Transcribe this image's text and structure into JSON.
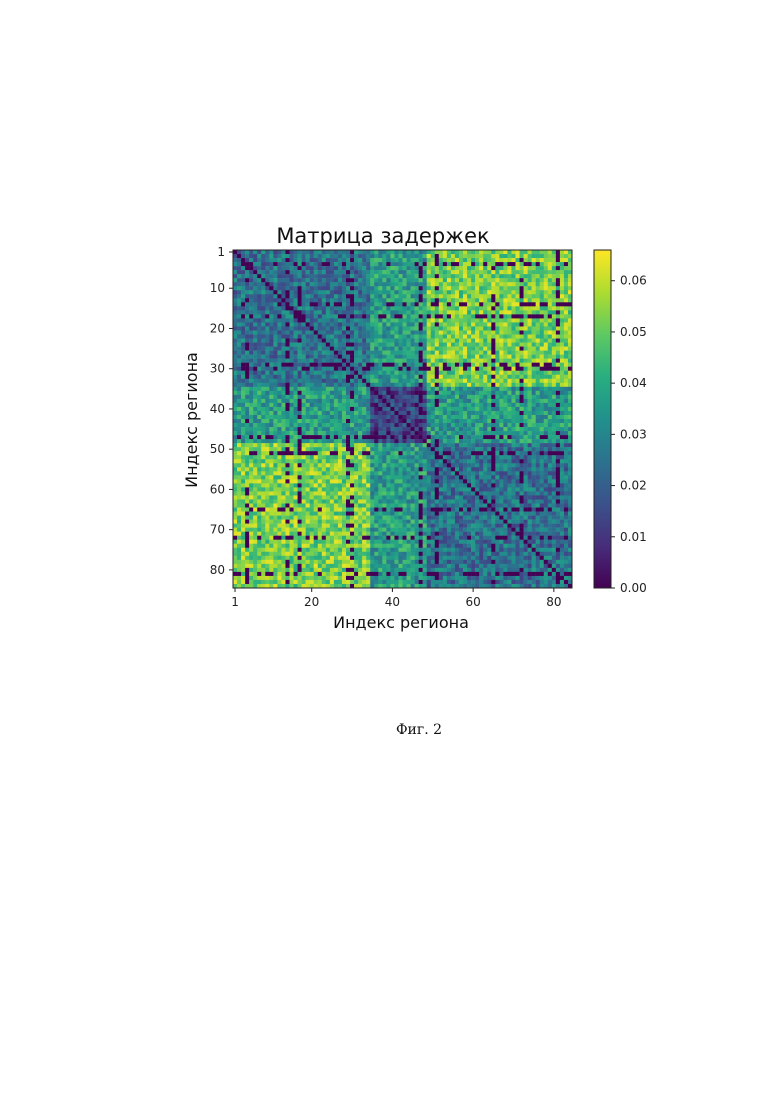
{
  "chart_data": {
    "type": "heatmap",
    "title": "Матрица задержек",
    "xlabel": "Индекс региона",
    "ylabel": "Индекс региона",
    "n_regions": 84,
    "x_ticks": [
      1,
      20,
      40,
      60,
      80
    ],
    "y_ticks": [
      1,
      10,
      20,
      30,
      40,
      50,
      60,
      70,
      80
    ],
    "colorbar": {
      "range": [
        0,
        0.066
      ],
      "ticks": [
        "0.00",
        "0.01",
        "0.02",
        "0.03",
        "0.04",
        "0.05",
        "0.06"
      ],
      "colormap": "viridis"
    },
    "grid": false,
    "block_structure": [
      {
        "regions": [
          1,
          34
        ],
        "within_block_level": 0.025
      },
      {
        "regions": [
          35,
          48
        ],
        "within_block_level": 0.012
      },
      {
        "regions": [
          49,
          84
        ],
        "within_block_level": 0.025
      }
    ],
    "between_block_levels": {
      "1-34 vs 49-84": 0.052,
      "1-34 vs 35-48": 0.036,
      "35-48 vs 49-84": 0.036
    },
    "zero_delay_regions": [
      4,
      14,
      17,
      29,
      30,
      47,
      51,
      65,
      72,
      81
    ],
    "diagonal_value": 0.0
  },
  "caption": "Фиг. 2"
}
